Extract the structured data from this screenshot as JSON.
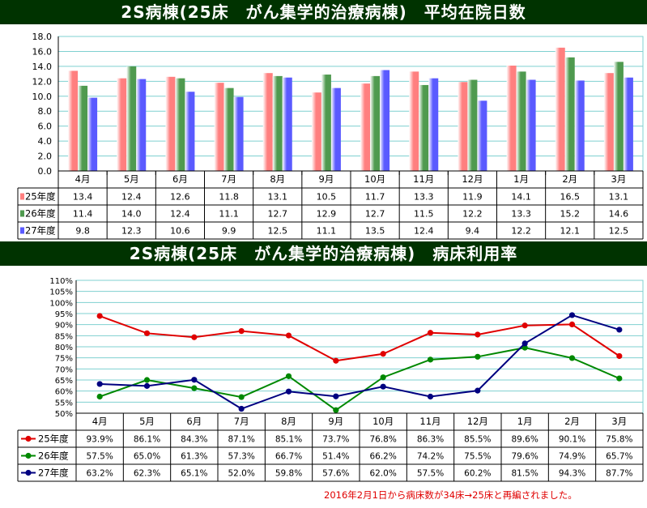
{
  "chart_data": [
    {
      "type": "bar",
      "title": "2S病棟(25床　がん集学的治療病棟)　平均在院日数",
      "categories": [
        "4月",
        "5月",
        "6月",
        "7月",
        "8月",
        "9月",
        "10月",
        "11月",
        "12月",
        "1月",
        "2月",
        "3月"
      ],
      "ylim": [
        0,
        18
      ],
      "yticks": [
        "0.0",
        "2.0",
        "4.0",
        "6.0",
        "8.0",
        "10.0",
        "12.0",
        "14.0",
        "16.0",
        "18.0"
      ],
      "grid": true,
      "series": [
        {
          "name": "25年度",
          "color": "#ff7f7f",
          "values": [
            13.4,
            12.4,
            12.6,
            11.8,
            13.1,
            10.5,
            11.7,
            13.3,
            11.9,
            14.1,
            16.5,
            13.1
          ],
          "labels": [
            "13.4",
            "12.4",
            "12.6",
            "11.8",
            "13.1",
            "10.5",
            "11.7",
            "13.3",
            "11.9",
            "14.1",
            "16.5",
            "13.1"
          ]
        },
        {
          "name": "26年度",
          "color": "#4f9a4f",
          "values": [
            11.4,
            14.0,
            12.4,
            11.1,
            12.7,
            12.9,
            12.7,
            11.5,
            12.2,
            13.3,
            15.2,
            14.6
          ],
          "labels": [
            "11.4",
            "14.0",
            "12.4",
            "11.1",
            "12.7",
            "12.9",
            "12.7",
            "11.5",
            "12.2",
            "13.3",
            "15.2",
            "14.6"
          ]
        },
        {
          "name": "27年度",
          "color": "#5a5aff",
          "values": [
            9.8,
            12.3,
            10.6,
            9.9,
            12.5,
            11.1,
            13.5,
            12.4,
            9.4,
            12.2,
            12.1,
            12.5
          ],
          "labels": [
            "9.8",
            "12.3",
            "10.6",
            "9.9",
            "12.5",
            "11.1",
            "13.5",
            "12.4",
            "9.4",
            "12.2",
            "12.1",
            "12.5"
          ]
        }
      ]
    },
    {
      "type": "line",
      "title": "2S病棟(25床　がん集学的治療病棟)　病床利用率",
      "categories": [
        "4月",
        "5月",
        "6月",
        "7月",
        "8月",
        "9月",
        "10月",
        "11月",
        "12月",
        "1月",
        "2月",
        "3月"
      ],
      "ylim": [
        50,
        110
      ],
      "yticks": [
        "50%",
        "55%",
        "60%",
        "65%",
        "70%",
        "75%",
        "80%",
        "85%",
        "90%",
        "95%",
        "100%",
        "105%",
        "110%"
      ],
      "grid": true,
      "series": [
        {
          "name": "25年度",
          "color": "#e00000",
          "values": [
            93.9,
            86.1,
            84.3,
            87.1,
            85.1,
            73.7,
            76.8,
            86.3,
            85.5,
            89.6,
            90.1,
            75.8
          ],
          "labels": [
            "93.9%",
            "86.1%",
            "84.3%",
            "87.1%",
            "85.1%",
            "73.7%",
            "76.8%",
            "86.3%",
            "85.5%",
            "89.6%",
            "90.1%",
            "75.8%"
          ]
        },
        {
          "name": "26年度",
          "color": "#008800",
          "values": [
            57.5,
            65.0,
            61.3,
            57.3,
            66.7,
            51.4,
            66.2,
            74.2,
            75.5,
            79.6,
            74.9,
            65.7
          ],
          "labels": [
            "57.5%",
            "65.0%",
            "61.3%",
            "57.3%",
            "66.7%",
            "51.4%",
            "66.2%",
            "74.2%",
            "75.5%",
            "79.6%",
            "74.9%",
            "65.7%"
          ]
        },
        {
          "name": "27年度",
          "color": "#000080",
          "values": [
            63.2,
            62.3,
            65.1,
            52.0,
            59.8,
            57.6,
            62.0,
            57.5,
            60.2,
            81.5,
            94.3,
            87.7
          ],
          "labels": [
            "63.2%",
            "62.3%",
            "65.1%",
            "52.0%",
            "59.8%",
            "57.6%",
            "62.0%",
            "57.5%",
            "60.2%",
            "81.5%",
            "94.3%",
            "87.7%"
          ]
        }
      ]
    }
  ],
  "note": "2016年2月1日から病床数が34床→25床と再編されました。"
}
